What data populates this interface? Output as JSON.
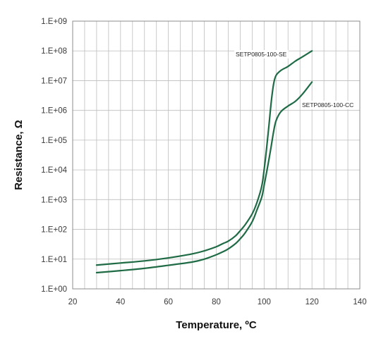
{
  "chart_data": {
    "type": "line",
    "title": "",
    "xlabel": "Temperature, ºC",
    "ylabel": "Resistance, Ω",
    "xlim": [
      20,
      140
    ],
    "ylim": [
      1,
      1000000000
    ],
    "yscale": "log",
    "grid": true,
    "x_ticks": [
      20,
      40,
      60,
      80,
      100,
      120,
      140
    ],
    "x_tick_labels": [
      "20",
      "40",
      "60",
      "80",
      "100",
      "120",
      "140"
    ],
    "x_minor_step": 5,
    "y_ticks": [
      1,
      10,
      100,
      1000,
      10000,
      100000,
      1000000,
      10000000,
      100000000,
      1000000000
    ],
    "y_tick_labels": [
      "1.E+00",
      "1.E+01",
      "1.E+02",
      "1.E+03",
      "1.E+04",
      "1.E+05",
      "1.E+06",
      "1.E+07",
      "1.E+08",
      "1.E+09"
    ],
    "line_color": "#1f6b45",
    "series": [
      {
        "name": "SETP0805-100-SE",
        "x": [
          30,
          40,
          50,
          60,
          70,
          75,
          80,
          83,
          85,
          88,
          90,
          92,
          95,
          97,
          99,
          100,
          101,
          102,
          103,
          104,
          105,
          107,
          110,
          113,
          116,
          120
        ],
        "y": [
          6.3,
          7.4,
          8.7,
          11,
          15,
          19,
          26,
          34,
          40,
          60,
          90,
          140,
          330,
          800,
          2800,
          10000,
          50000,
          300000,
          2000000,
          8000000,
          15000000,
          22000000,
          30000000,
          45000000,
          63000000,
          100000000
        ]
      },
      {
        "name": "SETP0805-100-CC",
        "x": [
          30,
          40,
          50,
          60,
          70,
          75,
          80,
          83,
          85,
          88,
          90,
          92,
          95,
          97,
          99,
          100,
          101,
          102,
          103,
          104,
          105,
          107,
          110,
          113,
          116,
          120
        ],
        "y": [
          3.5,
          4.1,
          4.9,
          6.2,
          8,
          10,
          14,
          18,
          22,
          33,
          48,
          75,
          180,
          450,
          1200,
          3000,
          8000,
          22000,
          65000,
          200000,
          450000,
          900000,
          1400000,
          2000000,
          3500000,
          9000000
        ]
      }
    ]
  }
}
